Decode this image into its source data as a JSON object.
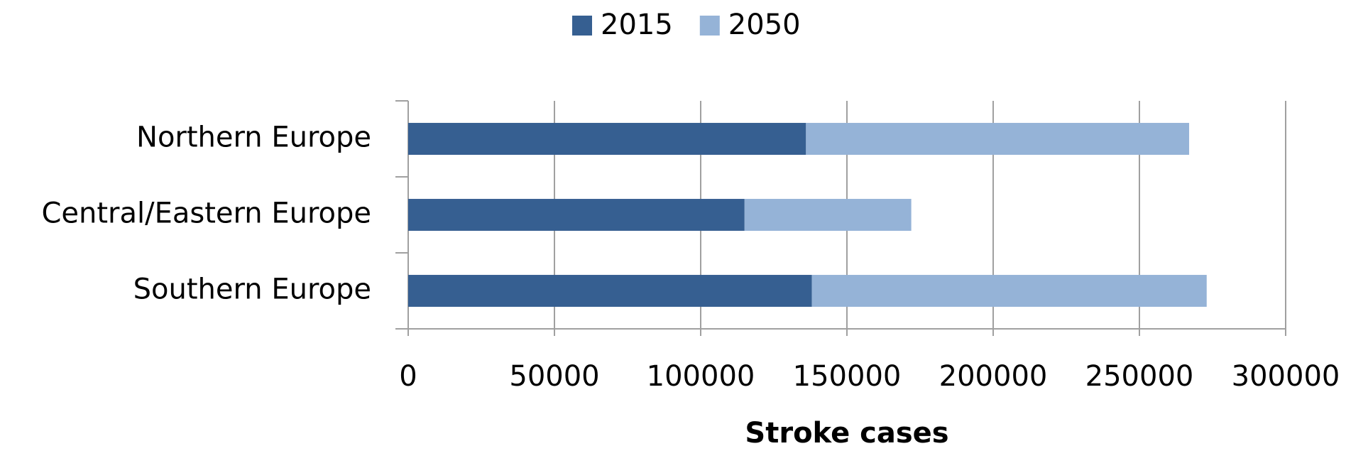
{
  "chart_data": {
    "type": "bar",
    "orientation": "horizontal",
    "stacked": true,
    "categories": [
      "Northern Europe",
      "Central/Eastern Europe",
      "Southern Europe"
    ],
    "series": [
      {
        "name": "2015",
        "color": "#365f91",
        "values": [
          136000,
          115000,
          138000
        ]
      },
      {
        "name": "2050",
        "color": "#95b3d7",
        "values": [
          131000,
          57000,
          135000
        ]
      }
    ],
    "xlabel": "Stroke cases",
    "xlim": [
      0,
      300000
    ],
    "xticks": [
      0,
      50000,
      100000,
      150000,
      200000,
      250000,
      300000
    ],
    "grid": true,
    "legend": "top"
  }
}
